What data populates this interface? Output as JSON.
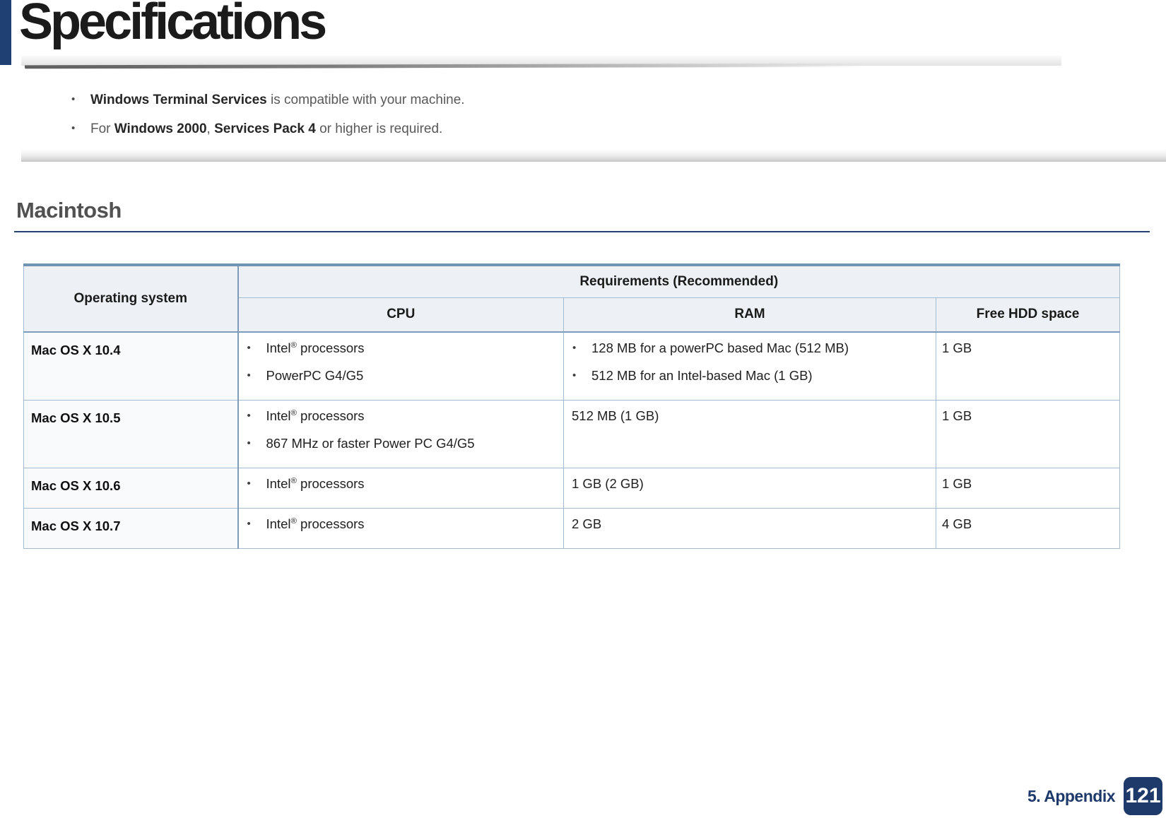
{
  "header": {
    "title": "Specifications"
  },
  "notes": [
    {
      "segments": [
        {
          "t": "Windows Terminal Services",
          "b": true
        },
        {
          "t": " is compatible with your machine.",
          "b": false
        }
      ]
    },
    {
      "segments": [
        {
          "t": "For ",
          "b": false
        },
        {
          "t": "Windows 2000",
          "b": true
        },
        {
          "t": ", ",
          "b": false
        },
        {
          "t": "Services Pack 4",
          "b": true
        },
        {
          "t": " or higher is required.",
          "b": false
        }
      ]
    }
  ],
  "section": {
    "heading": "Macintosh"
  },
  "table": {
    "header": {
      "operating_system": "Operating system",
      "requirements_group": "Requirements (Recommended)",
      "cpu": "CPU",
      "ram": "RAM",
      "free_hdd_space": "Free HDD space"
    },
    "rows": [
      {
        "os": "Mac OS X 10.4",
        "cpu": {
          "bullets": [
            "Intel® processors",
            "PowerPC G4/G5"
          ]
        },
        "ram": {
          "bullets": [
            "128 MB for a powerPC based Mac (512 MB)",
            "512 MB for an Intel-based Mac (1 GB)"
          ]
        },
        "hdd": "1 GB"
      },
      {
        "os": "Mac OS X 10.5",
        "cpu": {
          "bullets": [
            "Intel® processors",
            "867 MHz or faster Power PC G4/G5"
          ]
        },
        "ram": {
          "text": "512 MB (1 GB)"
        },
        "hdd": "1 GB"
      },
      {
        "os": "Mac OS X 10.6",
        "cpu": {
          "bullets": [
            "Intel® processors"
          ]
        },
        "ram": {
          "text": "1 GB (2 GB)"
        },
        "hdd": "1 GB"
      },
      {
        "os": "Mac OS X 10.7",
        "cpu": {
          "bullets": [
            "Intel® processors"
          ]
        },
        "ram": {
          "text": "2 GB"
        },
        "hdd": "4 GB"
      }
    ]
  },
  "footer": {
    "section": "5. Appendix",
    "page_number": "121"
  },
  "colors": {
    "accent_navy": "#1e4073",
    "footer_navy": "#1e3a6b",
    "table_top_border": "#6e93b5",
    "table_border_strong": "#7d9cba",
    "table_border_light": "#a4bcd1",
    "table_header_bg": "#edf1f5",
    "os_column_bg": "#f8fafb",
    "heading_gray": "#515151",
    "note_text_gray": "#595959"
  }
}
